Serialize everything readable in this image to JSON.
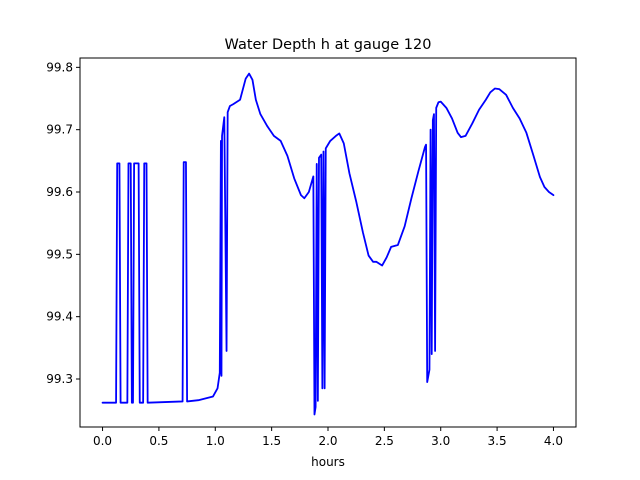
{
  "chart_data": {
    "type": "line",
    "title": "Water Depth h at gauge 120",
    "xlabel": "hours",
    "ylabel": "",
    "xlim": [
      -0.2,
      4.2
    ],
    "ylim": [
      99.223,
      99.815
    ],
    "x_ticks": [
      0.0,
      0.5,
      1.0,
      1.5,
      2.0,
      2.5,
      3.0,
      3.5,
      4.0
    ],
    "x_tick_labels": [
      "0.0",
      "0.5",
      "1.0",
      "1.5",
      "2.0",
      "2.5",
      "3.0",
      "3.5",
      "4.0"
    ],
    "y_ticks": [
      99.3,
      99.4,
      99.5,
      99.6,
      99.7,
      99.8
    ],
    "y_tick_labels": [
      "99.3",
      "99.4",
      "99.5",
      "99.6",
      "99.7",
      "99.8"
    ],
    "grid": false,
    "legend": "none",
    "series": [
      {
        "color": "#0000ff",
        "points": [
          [
            0.0,
            99.262
          ],
          [
            0.12,
            99.262
          ],
          [
            0.13,
            99.646
          ],
          [
            0.15,
            99.646
          ],
          [
            0.16,
            99.262
          ],
          [
            0.22,
            99.262
          ],
          [
            0.23,
            99.646
          ],
          [
            0.25,
            99.646
          ],
          [
            0.26,
            99.262
          ],
          [
            0.27,
            99.262
          ],
          [
            0.28,
            99.646
          ],
          [
            0.32,
            99.646
          ],
          [
            0.33,
            99.262
          ],
          [
            0.36,
            99.262
          ],
          [
            0.37,
            99.646
          ],
          [
            0.39,
            99.646
          ],
          [
            0.4,
            99.262
          ],
          [
            0.71,
            99.264
          ],
          [
            0.72,
            99.648
          ],
          [
            0.74,
            99.648
          ],
          [
            0.75,
            99.264
          ],
          [
            0.85,
            99.266
          ],
          [
            0.98,
            99.272
          ],
          [
            1.02,
            99.285
          ],
          [
            1.04,
            99.31
          ],
          [
            1.05,
            99.682
          ],
          [
            1.055,
            99.305
          ],
          [
            1.06,
            99.69
          ],
          [
            1.08,
            99.72
          ],
          [
            1.1,
            99.345
          ],
          [
            1.11,
            99.728
          ],
          [
            1.13,
            99.738
          ],
          [
            1.16,
            99.741
          ],
          [
            1.22,
            99.748
          ],
          [
            1.27,
            99.782
          ],
          [
            1.3,
            99.79
          ],
          [
            1.33,
            99.78
          ],
          [
            1.36,
            99.748
          ],
          [
            1.4,
            99.725
          ],
          [
            1.46,
            99.706
          ],
          [
            1.52,
            99.69
          ],
          [
            1.58,
            99.682
          ],
          [
            1.64,
            99.658
          ],
          [
            1.7,
            99.622
          ],
          [
            1.76,
            99.595
          ],
          [
            1.79,
            99.59
          ],
          [
            1.83,
            99.6
          ],
          [
            1.87,
            99.625
          ],
          [
            1.88,
            99.243
          ],
          [
            1.89,
            99.255
          ],
          [
            1.9,
            99.645
          ],
          [
            1.91,
            99.265
          ],
          [
            1.92,
            99.655
          ],
          [
            1.94,
            99.66
          ],
          [
            1.95,
            99.285
          ],
          [
            1.96,
            99.665
          ],
          [
            1.97,
            99.285
          ],
          [
            1.98,
            99.67
          ],
          [
            2.02,
            99.682
          ],
          [
            2.07,
            99.69
          ],
          [
            2.1,
            99.694
          ],
          [
            2.14,
            99.678
          ],
          [
            2.19,
            99.63
          ],
          [
            2.25,
            99.585
          ],
          [
            2.31,
            99.535
          ],
          [
            2.36,
            99.498
          ],
          [
            2.4,
            99.488
          ],
          [
            2.43,
            99.488
          ],
          [
            2.48,
            99.482
          ],
          [
            2.52,
            99.495
          ],
          [
            2.56,
            99.512
          ],
          [
            2.62,
            99.515
          ],
          [
            2.68,
            99.545
          ],
          [
            2.74,
            99.59
          ],
          [
            2.8,
            99.632
          ],
          [
            2.86,
            99.672
          ],
          [
            2.87,
            99.676
          ],
          [
            2.88,
            99.295
          ],
          [
            2.9,
            99.315
          ],
          [
            2.91,
            99.7
          ],
          [
            2.92,
            99.34
          ],
          [
            2.93,
            99.715
          ],
          [
            2.94,
            99.725
          ],
          [
            2.95,
            99.345
          ],
          [
            2.96,
            99.735
          ],
          [
            2.98,
            99.744
          ],
          [
            3.0,
            99.745
          ],
          [
            3.05,
            99.735
          ],
          [
            3.1,
            99.718
          ],
          [
            3.15,
            99.695
          ],
          [
            3.18,
            99.688
          ],
          [
            3.22,
            99.69
          ],
          [
            3.28,
            99.71
          ],
          [
            3.34,
            99.732
          ],
          [
            3.4,
            99.748
          ],
          [
            3.44,
            99.76
          ],
          [
            3.48,
            99.766
          ],
          [
            3.52,
            99.765
          ],
          [
            3.58,
            99.756
          ],
          [
            3.64,
            99.735
          ],
          [
            3.7,
            99.718
          ],
          [
            3.76,
            99.695
          ],
          [
            3.82,
            99.66
          ],
          [
            3.88,
            99.624
          ],
          [
            3.92,
            99.608
          ],
          [
            3.96,
            99.6
          ],
          [
            4.0,
            99.595
          ]
        ]
      }
    ]
  }
}
